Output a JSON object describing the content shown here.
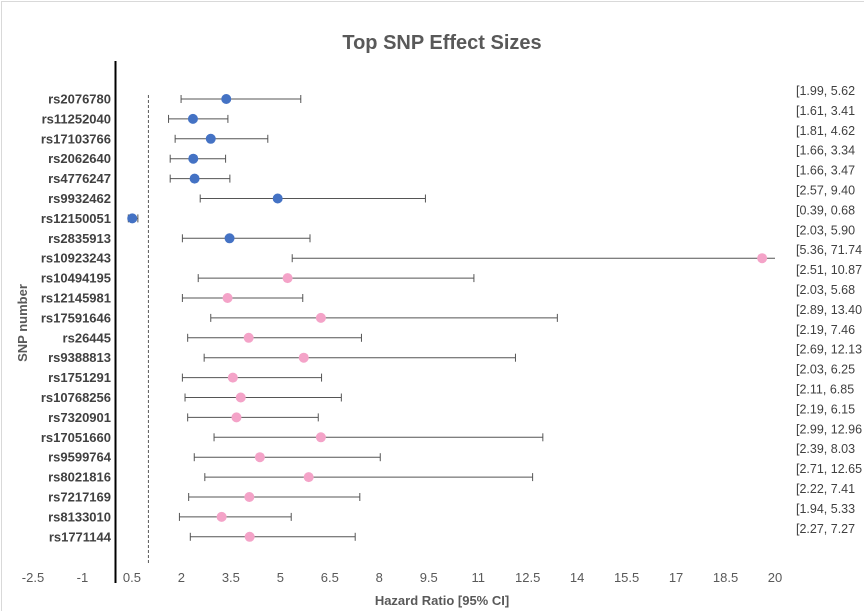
{
  "chart_data": {
    "type": "scatter",
    "title": "Top SNP Effect Sizes",
    "xlabel": "Hazard Ratio [95% CI]",
    "ylabel": "SNP number",
    "xlim": [
      -2.5,
      20
    ],
    "x_ticks": [
      "-2.5",
      "-1",
      "0.5",
      "2",
      "3.5",
      "5",
      "6.5",
      "8",
      "9.5",
      "11",
      "12.5",
      "14",
      "15.5",
      "17",
      "18.5",
      "20"
    ],
    "x_tick_values": [
      -2.5,
      -1,
      0.5,
      2,
      3.5,
      5,
      6.5,
      8,
      9.5,
      11,
      12.5,
      14,
      15.5,
      17,
      18.5,
      20
    ],
    "reference_line_x": 1,
    "colors": {
      "group1": "#4472c4",
      "group2": "#f4a3c8"
    },
    "rows": [
      {
        "snp": "rs2076780",
        "hr": 3.36,
        "lo": 1.99,
        "hi": 5.62,
        "ci": "[1.99, 5.62",
        "color": "#4472c4"
      },
      {
        "snp": "rs11252040",
        "hr": 2.35,
        "lo": 1.61,
        "hi": 3.41,
        "ci": "[1.61, 3.41",
        "color": "#4472c4"
      },
      {
        "snp": "rs17103766",
        "hr": 2.89,
        "lo": 1.81,
        "hi": 4.62,
        "ci": "[1.81, 4.62",
        "color": "#4472c4"
      },
      {
        "snp": "rs2062640",
        "hr": 2.36,
        "lo": 1.66,
        "hi": 3.34,
        "ci": "[1.66, 3.34",
        "color": "#4472c4"
      },
      {
        "snp": "rs4776247",
        "hr": 2.4,
        "lo": 1.66,
        "hi": 3.47,
        "ci": "[1.66, 3.47",
        "color": "#4472c4"
      },
      {
        "snp": "rs9932462",
        "hr": 4.92,
        "lo": 2.57,
        "hi": 9.4,
        "ci": "[2.57, 9.40",
        "color": "#4472c4"
      },
      {
        "snp": "rs12150051",
        "hr": 0.51,
        "lo": 0.39,
        "hi": 0.68,
        "ci": "[0.39, 0.68",
        "color": "#4472c4"
      },
      {
        "snp": "rs2835913",
        "hr": 3.46,
        "lo": 2.03,
        "hi": 5.9,
        "ci": "[2.03, 5.90",
        "color": "#4472c4"
      },
      {
        "snp": "rs10923243",
        "hr": 19.61,
        "lo": 5.36,
        "hi": 71.74,
        "ci": "[5.36, 71.74",
        "color": "#f4a3c8"
      },
      {
        "snp": "rs10494195",
        "hr": 5.22,
        "lo": 2.51,
        "hi": 10.87,
        "ci": "[2.51, 10.87",
        "color": "#f4a3c8"
      },
      {
        "snp": "rs12145981",
        "hr": 3.4,
        "lo": 2.03,
        "hi": 5.68,
        "ci": "[2.03, 5.68",
        "color": "#f4a3c8"
      },
      {
        "snp": "rs17591646",
        "hr": 6.23,
        "lo": 2.89,
        "hi": 13.4,
        "ci": "[2.89, 13.40",
        "color": "#f4a3c8"
      },
      {
        "snp": "rs26445",
        "hr": 4.04,
        "lo": 2.19,
        "hi": 7.46,
        "ci": "[2.19, 7.46",
        "color": "#f4a3c8"
      },
      {
        "snp": "rs9388813",
        "hr": 5.71,
        "lo": 2.69,
        "hi": 12.13,
        "ci": "[2.69, 12.13",
        "color": "#f4a3c8"
      },
      {
        "snp": "rs1751291",
        "hr": 3.56,
        "lo": 2.03,
        "hi": 6.25,
        "ci": "[2.03, 6.25",
        "color": "#f4a3c8"
      },
      {
        "snp": "rs10768256",
        "hr": 3.8,
        "lo": 2.11,
        "hi": 6.85,
        "ci": "[2.11, 6.85",
        "color": "#f4a3c8"
      },
      {
        "snp": "rs7320901",
        "hr": 3.67,
        "lo": 2.19,
        "hi": 6.15,
        "ci": "[2.19, 6.15",
        "color": "#f4a3c8"
      },
      {
        "snp": "rs17051660",
        "hr": 6.23,
        "lo": 2.99,
        "hi": 12.96,
        "ci": "[2.99, 12.96",
        "color": "#f4a3c8"
      },
      {
        "snp": "rs9599764",
        "hr": 4.38,
        "lo": 2.39,
        "hi": 8.03,
        "ci": "[2.39, 8.03",
        "color": "#f4a3c8"
      },
      {
        "snp": "rs8021816",
        "hr": 5.86,
        "lo": 2.71,
        "hi": 12.65,
        "ci": "[2.71, 12.65",
        "color": "#f4a3c8"
      },
      {
        "snp": "rs7217169",
        "hr": 4.06,
        "lo": 2.22,
        "hi": 7.41,
        "ci": "[2.22, 7.41",
        "color": "#f4a3c8"
      },
      {
        "snp": "rs8133010",
        "hr": 3.22,
        "lo": 1.94,
        "hi": 5.33,
        "ci": "[1.94, 5.33",
        "color": "#f4a3c8"
      },
      {
        "snp": "rs1771144",
        "hr": 4.07,
        "lo": 2.27,
        "hi": 7.27,
        "ci": "[2.27, 7.27",
        "color": "#f4a3c8"
      }
    ]
  }
}
